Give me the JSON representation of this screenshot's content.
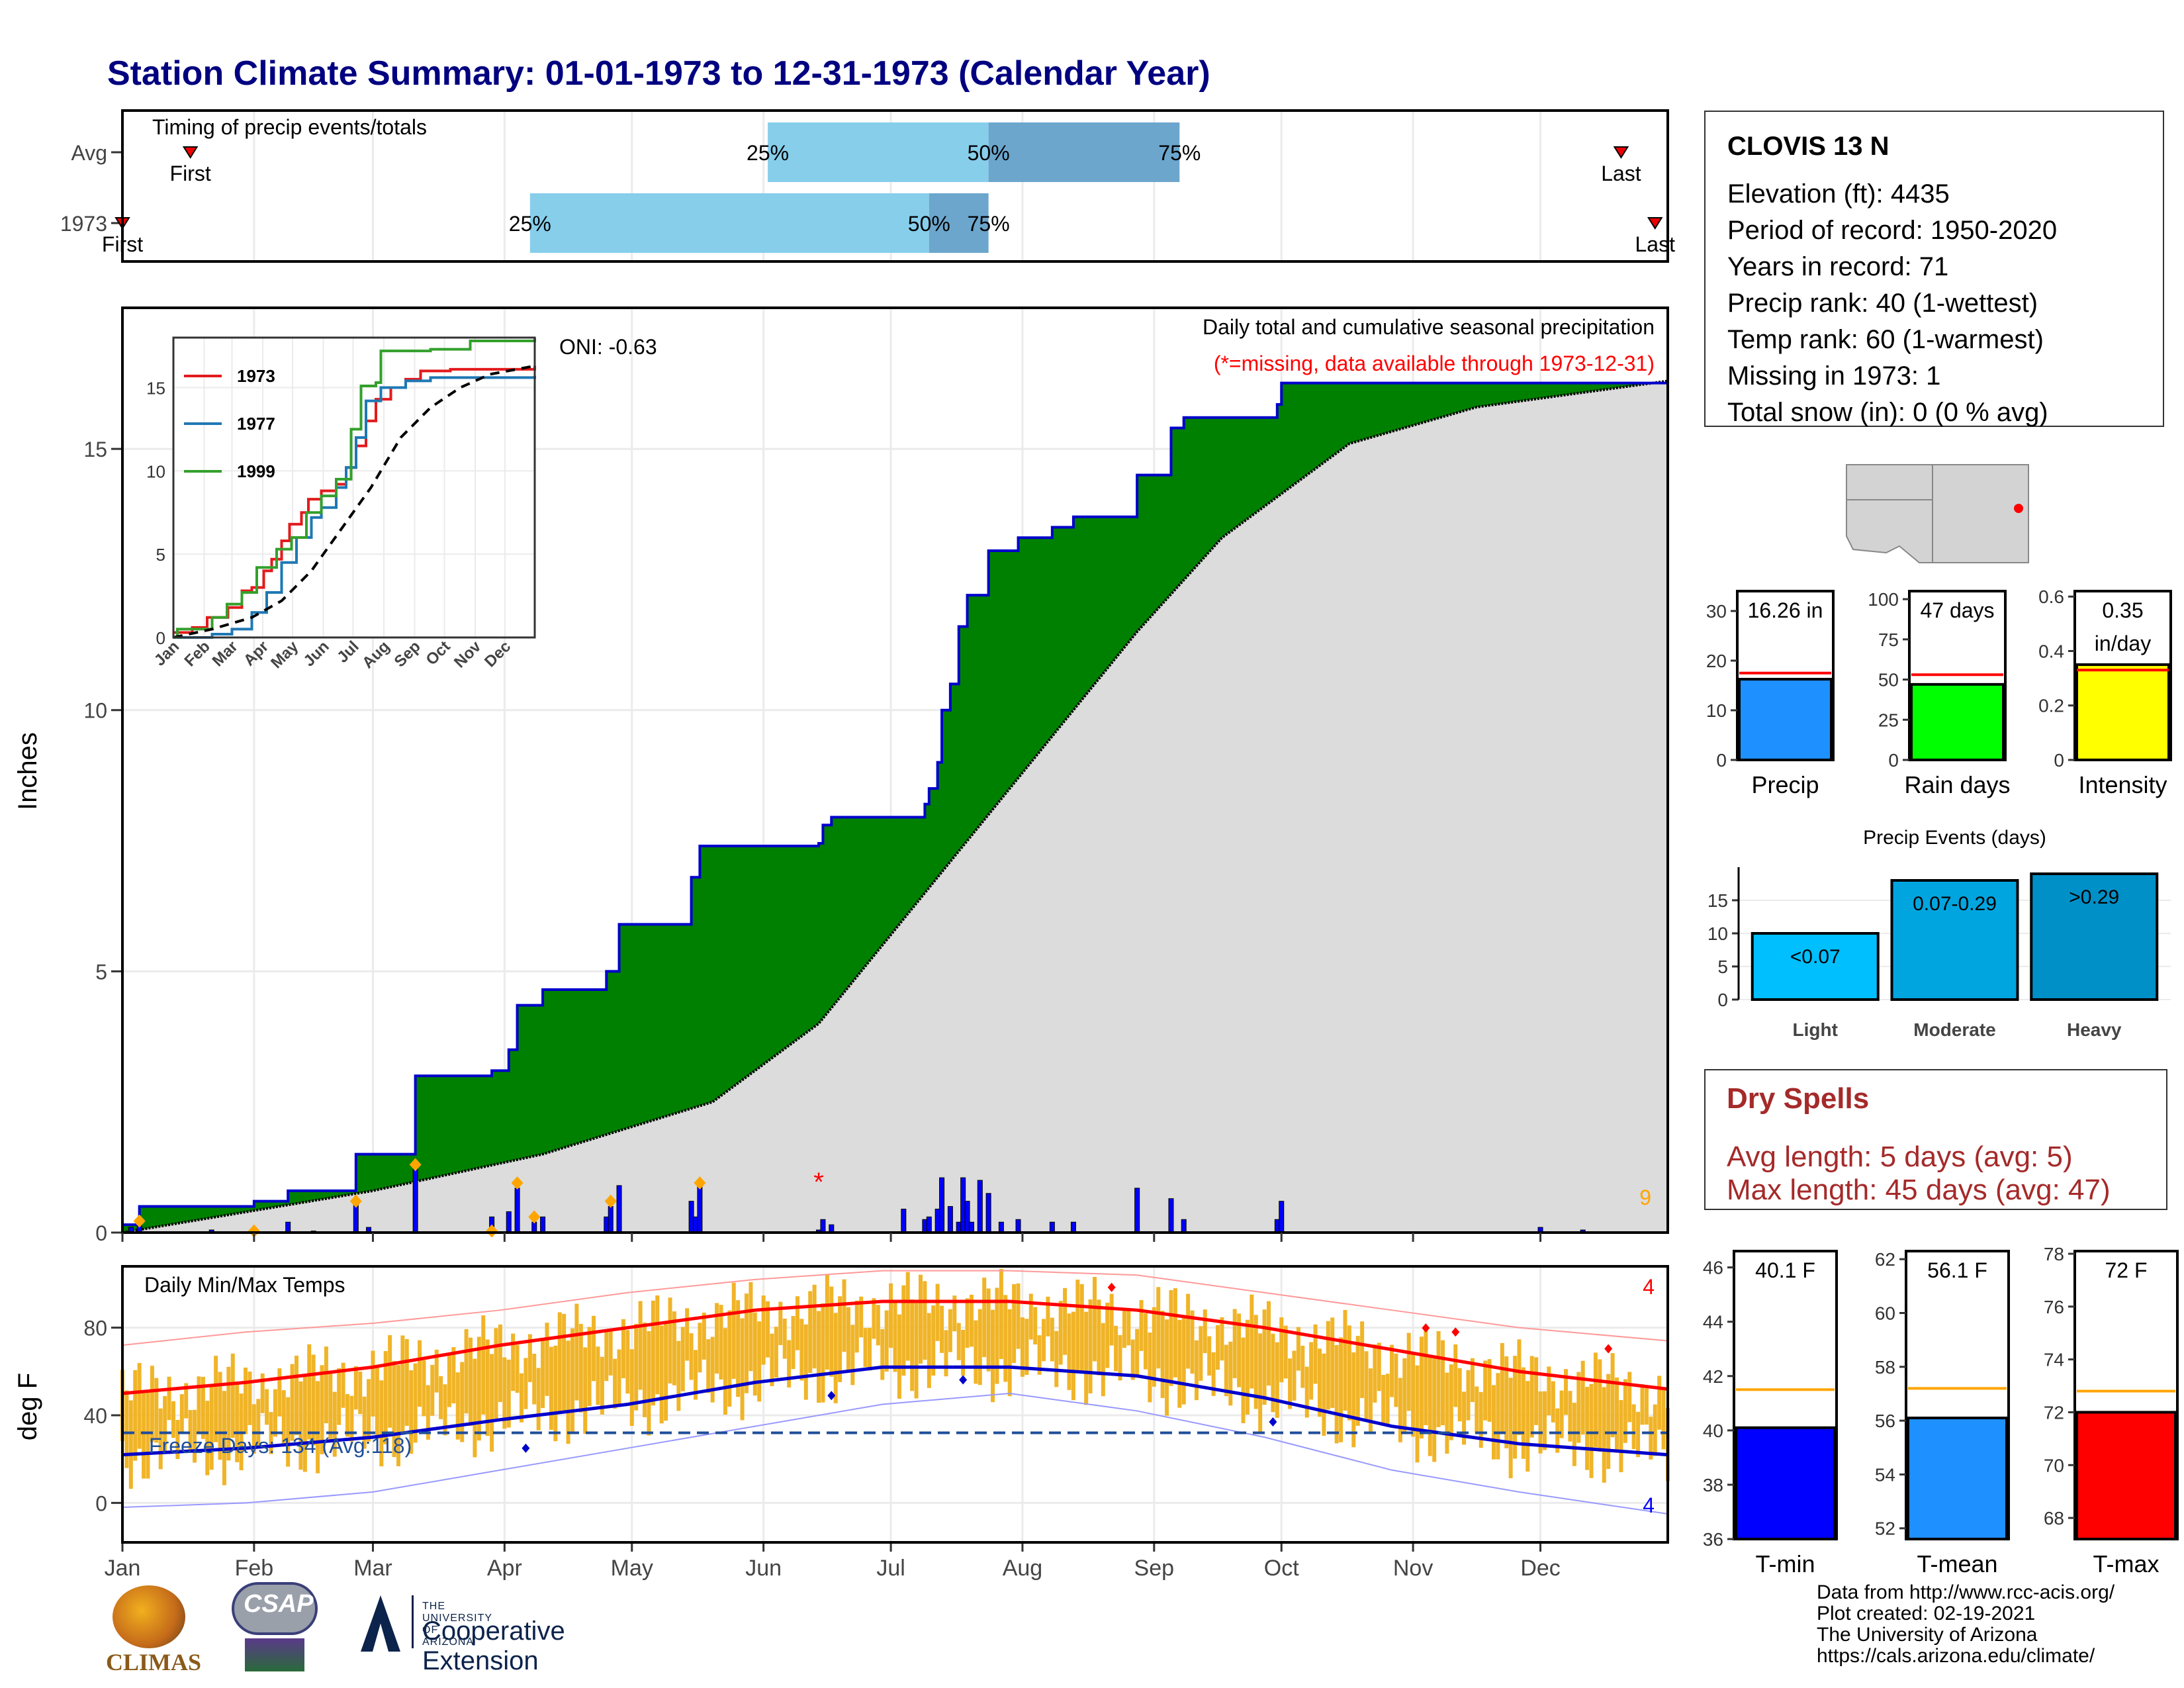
{
  "title": "Station Climate Summary: 01-01-1973 to 12-31-1973 (Calendar Year)",
  "timing": {
    "title": "Timing of precip events/totals",
    "rows": [
      {
        "label": "Avg",
        "first_doy": 17,
        "p25_doy": 153,
        "p50_doy": 205,
        "p75_doy": 250,
        "last_doy": 354
      },
      {
        "label": "1973",
        "first_doy": 1,
        "p25_doy": 97,
        "p50_doy": 191,
        "p75_doy": 205,
        "last_doy": 362
      }
    ],
    "labels": {
      "first": "First",
      "last": "Last",
      "p25": "25%",
      "p50": "50%",
      "p75": "75%"
    }
  },
  "station": {
    "name": "CLOVIS 13 N",
    "lines": [
      "Elevation (ft): 4435",
      "Period of record: 1950-2020",
      "Years in record: 71",
      "Precip rank: 40 (1-wettest)",
      "Temp rank: 60 (1-warmest)",
      "Missing in 1973: 1",
      "Total snow (in): 0 (0 % avg)"
    ]
  },
  "dry_spells": {
    "title": "Dry Spells",
    "lines": [
      "Avg length: 5 days (avg: 5)",
      "Max length: 45 days (avg: 47)"
    ]
  },
  "footer": {
    "lines": [
      "Data from http://www.rcc-acis.org/",
      "Plot created: 02-19-2021",
      "The University of Arizona",
      "https://cals.arizona.edu/climate/"
    ]
  },
  "logos": {
    "climas": "CLIMAS",
    "csap": "CSAP",
    "ua_small": "THE UNIVERSITY OF ARIZONA",
    "ua_big": "Cooperative Extension"
  },
  "colors": {
    "title": "#000080",
    "green": "#008000",
    "gray": "#dcdcdc",
    "precip_bar": "#0000ff",
    "temp_bar": "#f0b428",
    "tmax": "#ff0000",
    "tmin": "#0000cc",
    "orange": "#ffa500"
  },
  "chart_data": [
    {
      "type": "area",
      "name": "precip_main",
      "ylabel": "Inches",
      "yticks": [
        0,
        5,
        10,
        15
      ],
      "ylim": [
        0,
        17.7
      ],
      "months": [
        "Jan",
        "Feb",
        "Mar",
        "Apr",
        "May",
        "Jun",
        "Jul",
        "Aug",
        "Sep",
        "Oct",
        "Nov",
        "Dec"
      ],
      "annotation_title": "Daily total and cumulative seasonal precipitation",
      "annotation_missing": "(*=missing, data available through 1973-12-31)",
      "oni": "ONI: -0.63",
      "count_label": "9",
      "cumulative_1973": [
        [
          1,
          0.15
        ],
        [
          5,
          0.5
        ],
        [
          32,
          0.6
        ],
        [
          40,
          0.8
        ],
        [
          56,
          1.5
        ],
        [
          70,
          3.0
        ],
        [
          88,
          3.1
        ],
        [
          92,
          3.5
        ],
        [
          94,
          4.35
        ],
        [
          100,
          4.65
        ],
        [
          115,
          5.0
        ],
        [
          118,
          5.9
        ],
        [
          135,
          6.8
        ],
        [
          137,
          7.4
        ],
        [
          165,
          7.45
        ],
        [
          166,
          7.8
        ],
        [
          168,
          7.95
        ],
        [
          190,
          8.2
        ],
        [
          191,
          8.5
        ],
        [
          193,
          9.0
        ],
        [
          194,
          10.0
        ],
        [
          196,
          10.5
        ],
        [
          198,
          11.6
        ],
        [
          200,
          12.2
        ],
        [
          205,
          13.05
        ],
        [
          212,
          13.3
        ],
        [
          220,
          13.5
        ],
        [
          225,
          13.7
        ],
        [
          240,
          14.5
        ],
        [
          248,
          15.4
        ],
        [
          251,
          15.6
        ],
        [
          273,
          15.85
        ],
        [
          274,
          16.26
        ],
        [
          365,
          16.3
        ]
      ],
      "average_cumulative": [
        [
          1,
          0
        ],
        [
          60,
          0.8
        ],
        [
          100,
          1.5
        ],
        [
          140,
          2.5
        ],
        [
          165,
          4.0
        ],
        [
          190,
          6.5
        ],
        [
          215,
          9.0
        ],
        [
          240,
          11.5
        ],
        [
          260,
          13.3
        ],
        [
          290,
          15.1
        ],
        [
          320,
          15.8
        ],
        [
          365,
          16.3
        ]
      ],
      "daily_precip": [
        [
          3,
          0.1
        ],
        [
          5,
          0.15
        ],
        [
          22,
          0.05
        ],
        [
          32,
          0.05
        ],
        [
          40,
          0.2
        ],
        [
          46,
          0.03
        ],
        [
          56,
          0.6
        ],
        [
          59,
          0.1
        ],
        [
          70,
          1.3
        ],
        [
          88,
          0.3
        ],
        [
          92,
          0.4
        ],
        [
          94,
          0.85
        ],
        [
          98,
          0.2
        ],
        [
          100,
          0.3
        ],
        [
          115,
          0.3
        ],
        [
          116,
          0.5
        ],
        [
          118,
          0.9
        ],
        [
          135,
          0.6
        ],
        [
          136,
          0.3
        ],
        [
          137,
          0.9
        ],
        [
          165,
          0.05
        ],
        [
          166,
          0.25
        ],
        [
          168,
          0.15
        ],
        [
          185,
          0.45
        ],
        [
          190,
          0.25
        ],
        [
          191,
          0.3
        ],
        [
          193,
          0.45
        ],
        [
          194,
          1.05
        ],
        [
          196,
          0.5
        ],
        [
          198,
          0.2
        ],
        [
          199,
          1.05
        ],
        [
          200,
          0.6
        ],
        [
          201,
          0.2
        ],
        [
          203,
          1.0
        ],
        [
          205,
          0.75
        ],
        [
          208,
          0.2
        ],
        [
          212,
          0.25
        ],
        [
          220,
          0.2
        ],
        [
          225,
          0.2
        ],
        [
          240,
          0.85
        ],
        [
          248,
          0.65
        ],
        [
          251,
          0.25
        ],
        [
          273,
          0.25
        ],
        [
          274,
          0.6
        ],
        [
          335,
          0.1
        ],
        [
          345,
          0.05
        ]
      ],
      "orange_markers": [
        [
          5,
          0.22
        ],
        [
          32,
          0.03
        ],
        [
          56,
          0.6
        ],
        [
          70,
          1.3
        ],
        [
          88,
          0.03
        ],
        [
          94,
          0.95
        ],
        [
          98,
          0.3
        ],
        [
          116,
          0.6
        ],
        [
          137,
          0.95
        ]
      ],
      "missing_marker_doy": 165
    },
    {
      "type": "line",
      "name": "precip_inset",
      "yticks": [
        0,
        5,
        10,
        15
      ],
      "months": [
        "Jan",
        "Feb",
        "Mar",
        "Apr",
        "May",
        "Jun",
        "Jul",
        "Aug",
        "Sep",
        "Oct",
        "Nov",
        "Dec"
      ],
      "series": [
        {
          "name": "1973",
          "color": "#e31a1c",
          "points": [
            [
              1,
              0.3
            ],
            [
              20,
              0.6
            ],
            [
              35,
              1.2
            ],
            [
              56,
              1.8
            ],
            [
              70,
              2.8
            ],
            [
              80,
              3.0
            ],
            [
              92,
              4.0
            ],
            [
              100,
              4.7
            ],
            [
              110,
              5.8
            ],
            [
              118,
              6.8
            ],
            [
              130,
              7.5
            ],
            [
              137,
              8.3
            ],
            [
              150,
              8.8
            ],
            [
              165,
              9.2
            ],
            [
              175,
              10.2
            ],
            [
              185,
              11.5
            ],
            [
              195,
              13.0
            ],
            [
              205,
              14.3
            ],
            [
              220,
              15.0
            ],
            [
              235,
              15.5
            ],
            [
              250,
              16.0
            ],
            [
              280,
              16.1
            ],
            [
              365,
              16.3
            ]
          ]
        },
        {
          "name": "1977",
          "color": "#1f78b4",
          "points": [
            [
              1,
              0
            ],
            [
              40,
              0.2
            ],
            [
              60,
              0.5
            ],
            [
              80,
              1.5
            ],
            [
              95,
              2.7
            ],
            [
              110,
              4.5
            ],
            [
              125,
              6.0
            ],
            [
              140,
              7.2
            ],
            [
              150,
              7.8
            ],
            [
              165,
              9.0
            ],
            [
              175,
              10.2
            ],
            [
              185,
              12.0
            ],
            [
              195,
              14.2
            ],
            [
              210,
              15.0
            ],
            [
              235,
              15.4
            ],
            [
              260,
              15.6
            ],
            [
              365,
              15.7
            ]
          ]
        },
        {
          "name": "1999",
          "color": "#33a02c",
          "points": [
            [
              1,
              0
            ],
            [
              5,
              0.5
            ],
            [
              40,
              1.2
            ],
            [
              55,
              2.0
            ],
            [
              70,
              2.7
            ],
            [
              85,
              4.2
            ],
            [
              105,
              5.3
            ],
            [
              120,
              6.0
            ],
            [
              135,
              7.5
            ],
            [
              150,
              8.5
            ],
            [
              165,
              9.5
            ],
            [
              180,
              12.5
            ],
            [
              190,
              15.1
            ],
            [
              205,
              15.3
            ],
            [
              210,
              17.2
            ],
            [
              260,
              17.3
            ],
            [
              300,
              17.8
            ],
            [
              365,
              18.0
            ]
          ]
        },
        {
          "name": "",
          "color": "#000000",
          "dashed": true,
          "points": [
            [
              1,
              0
            ],
            [
              40,
              0.5
            ],
            [
              80,
              1.2
            ],
            [
              110,
              2.2
            ],
            [
              140,
              4.0
            ],
            [
              170,
              6.5
            ],
            [
              200,
              9.0
            ],
            [
              230,
              12.0
            ],
            [
              260,
              13.8
            ],
            [
              290,
              15.0
            ],
            [
              320,
              15.8
            ],
            [
              365,
              16.3
            ]
          ]
        }
      ]
    },
    {
      "type": "bar",
      "name": "temperature",
      "title": "Daily Min/Max Temps",
      "ylabel": "deg F",
      "yticks": [
        0,
        40,
        80
      ],
      "ylim": [
        -18,
        108
      ],
      "months": [
        "Jan",
        "Feb",
        "Mar",
        "Apr",
        "May",
        "Jun",
        "Jul",
        "Aug",
        "Sep",
        "Oct",
        "Nov",
        "Dec"
      ],
      "freeze_days": "Freeze Days: 134 (Avg:118)",
      "freeze_line": 32,
      "record_high_count": "4",
      "record_low_count": "4",
      "record_highs_doy": [
        234,
        308,
        315,
        351
      ],
      "record_lows_doy": [
        96,
        168,
        199,
        272
      ],
      "normal_max": [
        [
          1,
          50
        ],
        [
          30,
          55
        ],
        [
          60,
          62
        ],
        [
          90,
          72
        ],
        [
          120,
          80
        ],
        [
          150,
          88
        ],
        [
          180,
          92
        ],
        [
          210,
          92
        ],
        [
          240,
          88
        ],
        [
          270,
          80
        ],
        [
          300,
          70
        ],
        [
          330,
          60
        ],
        [
          365,
          52
        ]
      ],
      "normal_min": [
        [
          1,
          22
        ],
        [
          30,
          25
        ],
        [
          60,
          30
        ],
        [
          90,
          38
        ],
        [
          120,
          45
        ],
        [
          150,
          55
        ],
        [
          180,
          62
        ],
        [
          210,
          62
        ],
        [
          240,
          58
        ],
        [
          270,
          48
        ],
        [
          300,
          35
        ],
        [
          330,
          27
        ],
        [
          365,
          22
        ]
      ],
      "record_max": [
        [
          1,
          72
        ],
        [
          30,
          78
        ],
        [
          60,
          82
        ],
        [
          90,
          88
        ],
        [
          120,
          96
        ],
        [
          150,
          102
        ],
        [
          180,
          106
        ],
        [
          210,
          106
        ],
        [
          240,
          104
        ],
        [
          270,
          96
        ],
        [
          300,
          88
        ],
        [
          330,
          80
        ],
        [
          365,
          74
        ]
      ],
      "record_min": [
        [
          1,
          -2
        ],
        [
          30,
          0
        ],
        [
          60,
          5
        ],
        [
          90,
          15
        ],
        [
          120,
          25
        ],
        [
          150,
          35
        ],
        [
          180,
          45
        ],
        [
          210,
          50
        ],
        [
          240,
          42
        ],
        [
          270,
          30
        ],
        [
          300,
          15
        ],
        [
          330,
          5
        ],
        [
          365,
          -5
        ]
      ]
    },
    {
      "type": "bar",
      "name": "summary_precip",
      "panels": [
        {
          "label": "Precip",
          "value": 16.26,
          "avg": 17.5,
          "text1": "16.26 in",
          "text2": "",
          "ylim": [
            0,
            34
          ],
          "yticks": [
            0,
            10,
            20,
            30
          ],
          "color": "#1e90ff"
        },
        {
          "label": "Rain days",
          "value": 47,
          "avg": 53,
          "text1": "47 days",
          "text2": "",
          "ylim": [
            0,
            105
          ],
          "yticks": [
            0,
            25,
            50,
            75,
            100
          ],
          "color": "#00ff00"
        },
        {
          "label": "Intensity",
          "value": 0.35,
          "avg": 0.33,
          "text1": "0.35",
          "text2": "in/day",
          "ylim": [
            0,
            0.62
          ],
          "yticks": [
            0.0,
            0.2,
            0.4,
            0.6
          ],
          "color": "#ffff00"
        }
      ]
    },
    {
      "type": "bar",
      "name": "precip_events",
      "title": "Precip Events (days)",
      "categories": [
        "Light",
        "Moderate",
        "Heavy"
      ],
      "bar_labels": [
        "<0.07",
        "0.07-0.29",
        ">0.29"
      ],
      "values": [
        10,
        18,
        19
      ],
      "colors": [
        "#00bfff",
        "#00a5e0",
        "#0090c8"
      ],
      "yticks": [
        0,
        5,
        10,
        15
      ],
      "ylim": [
        0,
        20
      ]
    },
    {
      "type": "bar",
      "name": "summary_temp",
      "panels": [
        {
          "label": "T-min",
          "value": 40.1,
          "avg": 41.5,
          "text1": "40.1 F",
          "ylim": [
            36,
            46.6
          ],
          "yticks": [
            36,
            38,
            40,
            42,
            44,
            46
          ],
          "color": "#0000ff"
        },
        {
          "label": "T-mean",
          "value": 56.1,
          "avg": 57.2,
          "text1": "56.1 F",
          "ylim": [
            51.6,
            62.3
          ],
          "yticks": [
            52,
            54,
            56,
            58,
            60,
            62
          ],
          "color": "#1e90ff"
        },
        {
          "label": "T-max",
          "value": 72,
          "avg": 72.8,
          "text1": "72 F",
          "ylim": [
            67.2,
            78.1
          ],
          "yticks": [
            68,
            70,
            72,
            74,
            76,
            78
          ],
          "color": "#ff0000"
        }
      ]
    }
  ]
}
